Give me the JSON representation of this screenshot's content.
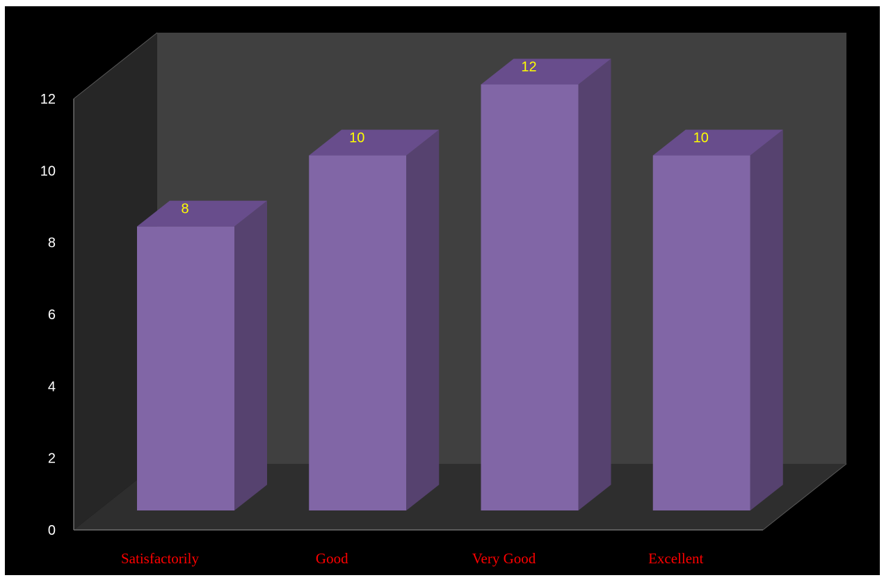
{
  "chart_data": {
    "type": "bar",
    "style": "3d-column",
    "categories": [
      "Satisfactorily",
      "Good",
      "Very Good",
      "Excellent"
    ],
    "values": [
      8,
      10,
      12,
      10
    ],
    "data_labels": [
      "8",
      "10",
      "12",
      "10"
    ],
    "title": "",
    "xlabel": "",
    "ylabel": "",
    "ylim": [
      0,
      12
    ],
    "yticks": [
      "0",
      "2",
      "4",
      "6",
      "8",
      "10",
      "12"
    ],
    "grid": false,
    "legend": "none"
  },
  "colors": {
    "page_background": "#ffffff",
    "plot_background": "#000000",
    "back_wall": "#404040",
    "side_wall": "#262626",
    "floor": "#2e2e2e",
    "bar_front": "#8166a6",
    "bar_side": "#56426f",
    "bar_top": "#684d8c",
    "tick_labels": "#ffffff",
    "category_labels": "#ff0000",
    "data_labels": "#ffff00"
  }
}
